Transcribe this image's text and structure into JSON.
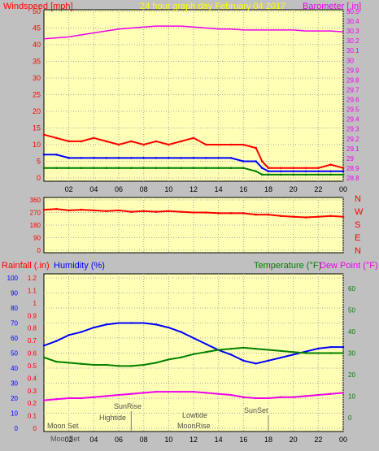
{
  "chart_data": [
    {
      "type": "line",
      "title": "24 hour graph day   February 04 2017",
      "y_left_label": "Windspeed [mph]",
      "y_right_label": "Barometer [.in]",
      "y_left_range": [
        0,
        50
      ],
      "y_left_ticks": [
        "0",
        "5",
        "10",
        "15",
        "20",
        "25",
        "30",
        "35",
        "40",
        "45",
        "50"
      ],
      "y_right_range": [
        28.8,
        30.5
      ],
      "y_right_ticks": [
        "28.8",
        "28.9",
        "29",
        "29.1",
        "29.2",
        "29.3",
        "29.4",
        "29.5",
        "29.6",
        "29.7",
        "29.8",
        "29.9",
        "30",
        "30.1",
        "30.2",
        "30.3",
        "30.4",
        "30.5"
      ],
      "x_range": [
        0,
        24
      ],
      "x_tick_labels": [
        "02",
        "04",
        "06",
        "08",
        "10",
        "12",
        "14",
        "16",
        "18",
        "20",
        "22",
        "00"
      ],
      "grid": true,
      "colors": {
        "gust": "#ff0000",
        "speed": "#0000ff",
        "average": "#008000",
        "barometer": "#ee00ee"
      },
      "series": [
        {
          "name": "Barometer [.in]",
          "axis": "right",
          "x": [
            0,
            1,
            2,
            3,
            4,
            5,
            6,
            7,
            8,
            9,
            10,
            11,
            12,
            13,
            14,
            15,
            16,
            17,
            18,
            19,
            20,
            21,
            22,
            23,
            24
          ],
          "values": [
            30.22,
            30.23,
            30.24,
            30.26,
            30.28,
            30.3,
            30.32,
            30.33,
            30.34,
            30.35,
            30.35,
            30.35,
            30.34,
            30.33,
            30.32,
            30.32,
            30.31,
            30.31,
            30.31,
            30.31,
            30.31,
            30.3,
            30.3,
            30.3,
            30.29
          ]
        },
        {
          "x": [
            0,
            1,
            2,
            3,
            4,
            5,
            6,
            7,
            8,
            9,
            10,
            11,
            12,
            13,
            14,
            15,
            16,
            17,
            17.5,
            18,
            19,
            20,
            21,
            22,
            23,
            24
          ],
          "values": [
            13,
            12,
            11,
            11,
            12,
            11,
            10,
            11,
            10,
            11,
            10,
            11,
            12,
            10,
            10,
            10,
            10,
            9,
            5,
            3,
            3,
            3,
            3,
            3,
            4,
            3
          ]
        },
        {
          "x": [
            0,
            1,
            2,
            3,
            4,
            5,
            6,
            7,
            8,
            9,
            10,
            11,
            12,
            13,
            14,
            15,
            16,
            17,
            17.5,
            18,
            19,
            20,
            21,
            22,
            23,
            24
          ],
          "values": [
            7,
            7,
            6,
            6,
            6,
            6,
            6,
            6,
            6,
            6,
            6,
            6,
            6,
            6,
            6,
            6,
            5,
            5,
            3,
            2,
            2,
            2,
            2,
            2,
            2,
            2
          ]
        },
        {
          "x": [
            0,
            1,
            2,
            3,
            4,
            5,
            6,
            7,
            8,
            9,
            10,
            11,
            12,
            13,
            14,
            15,
            16,
            17,
            17.5,
            18,
            19,
            20,
            21,
            22,
            23,
            24
          ],
          "values": [
            3,
            3,
            3,
            3,
            3,
            3,
            3,
            3,
            3,
            3,
            3,
            3,
            3,
            3,
            3,
            3,
            3,
            2,
            1,
            1,
            1,
            1,
            1,
            1,
            1,
            1
          ]
        }
      ]
    },
    {
      "type": "line",
      "y_range": [
        0,
        360
      ],
      "y_ticks": [
        "0",
        "90",
        "180",
        "270",
        "360"
      ],
      "y_right_letters": [
        "N",
        "W",
        "S",
        "E",
        "N"
      ],
      "grid": true,
      "color": "#ff0000",
      "series": [
        {
          "x": [
            0,
            1,
            2,
            3,
            4,
            5,
            6,
            7,
            8,
            9,
            10,
            11,
            12,
            13,
            14,
            15,
            16,
            17,
            18,
            19,
            20,
            21,
            22,
            23,
            24
          ],
          "values": [
            290,
            295,
            285,
            290,
            285,
            280,
            285,
            275,
            280,
            275,
            280,
            275,
            270,
            270,
            265,
            265,
            265,
            255,
            255,
            245,
            240,
            235,
            240,
            245,
            240
          ]
        }
      ]
    },
    {
      "type": "line",
      "y_labels": {
        "rainfall": "Rainfall (.in)",
        "humidity": "Humidity (%)",
        "temperature": "Temperature (°F)",
        "dewpoint": "Dew Point (°F)"
      },
      "y_left_outer_range": [
        0,
        100
      ],
      "y_left_outer_ticks": [
        "0",
        "10",
        "20",
        "30",
        "40",
        "50",
        "60",
        "70",
        "80",
        "90",
        "100"
      ],
      "y_left_inner_range": [
        0,
        1.2
      ],
      "y_left_inner_ticks": [
        "0",
        "0.1",
        "0.2",
        "0.3",
        "0.4",
        "0.5",
        "0.6",
        "0.7",
        "0.8",
        "0.9",
        "1",
        "1.1",
        "1.2"
      ],
      "y_right_range": [
        -5,
        65
      ],
      "y_right_ticks": [
        "0",
        "10",
        "20",
        "30",
        "40",
        "50",
        "60"
      ],
      "x_range": [
        0,
        24
      ],
      "x_tick_labels": [
        "02",
        "04",
        "06",
        "08",
        "10",
        "12",
        "14",
        "16",
        "18",
        "20",
        "22",
        "00"
      ],
      "annotations": [
        "Moon Set",
        "Hightide",
        "SunRise",
        "Lowtide",
        "MoonRise",
        "SunSet",
        "MoonSet"
      ],
      "grid": true,
      "colors": {
        "humidity": "#0000ff",
        "temperature": "#008000",
        "dewpoint": "#ee00ee",
        "rainfall": "#ff0000"
      },
      "series": [
        {
          "axis": "humidity",
          "x": [
            0,
            1,
            2,
            3,
            4,
            5,
            6,
            7,
            8,
            9,
            10,
            11,
            12,
            13,
            14,
            15,
            16,
            17,
            18,
            19,
            20,
            21,
            22,
            23,
            24
          ],
          "values": [
            55,
            58,
            62,
            64,
            67,
            69,
            70,
            70,
            70,
            69,
            67,
            64,
            60,
            56,
            52,
            49,
            45,
            43,
            45,
            47,
            49,
            51,
            53,
            54,
            54
          ]
        },
        {
          "axis": "temperature",
          "x": [
            0,
            1,
            2,
            3,
            4,
            5,
            6,
            7,
            8,
            9,
            10,
            11,
            12,
            13,
            14,
            15,
            16,
            17,
            18,
            19,
            20,
            21,
            22,
            23,
            24
          ],
          "values": [
            28,
            26,
            25.5,
            25,
            24.5,
            24.5,
            24,
            24,
            24.5,
            25.5,
            27,
            28,
            29.5,
            30.5,
            31.5,
            32,
            32.5,
            32,
            31.5,
            31,
            30.5,
            30,
            30,
            30,
            30
          ]
        },
        {
          "axis": "temperature",
          "x": [
            0,
            1,
            2,
            3,
            4,
            5,
            6,
            7,
            8,
            9,
            10,
            11,
            12,
            13,
            14,
            15,
            16,
            17,
            18,
            19,
            20,
            21,
            22,
            23,
            24
          ],
          "values": [
            8,
            8.5,
            9,
            9,
            9.5,
            10,
            10.5,
            11,
            11.5,
            12,
            12,
            12,
            12,
            11.5,
            11,
            10.5,
            9.5,
            9,
            9,
            9.5,
            9.5,
            10,
            10.5,
            11,
            11.5
          ]
        }
      ]
    }
  ]
}
